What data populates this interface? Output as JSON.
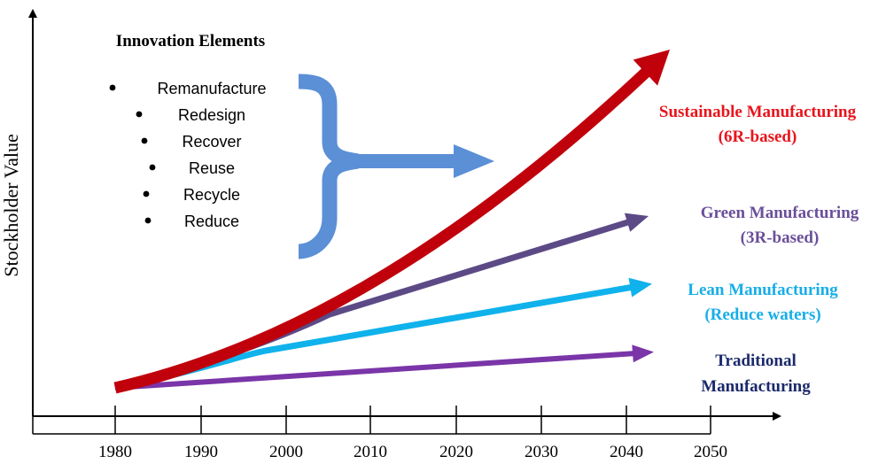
{
  "axes": {
    "ylabel": "Stockholder Value",
    "x_ticks": [
      "1980",
      "1990",
      "2000",
      "2010",
      "2020",
      "2030",
      "2040",
      "2050"
    ]
  },
  "innovation": {
    "title": "Innovation Elements",
    "items": [
      "Remanufacture",
      "Redesign",
      "Recover",
      "Reuse",
      "Recycle",
      "Reduce"
    ]
  },
  "brace_color": "#5b8fd6",
  "trends": [
    {
      "id": "sustainable",
      "line1": "Sustainable Manufacturing",
      "line2": "(6R-based)",
      "color": "#c0000b",
      "label_color": "#e8141c"
    },
    {
      "id": "green",
      "line1": "Green Manufacturing",
      "line2": "(3R-based)",
      "color": "#5c4a86",
      "label_color": "#6a4f9a"
    },
    {
      "id": "lean",
      "line1": "Lean Manufacturing",
      "line2": "(Reduce waters)",
      "color": "#10b2ec",
      "label_color": "#17aee8"
    },
    {
      "id": "traditional",
      "line1": "Traditional",
      "line2": "Manufacturing",
      "color": "#7a35a8",
      "label_color": "#1b2a6b"
    }
  ]
}
